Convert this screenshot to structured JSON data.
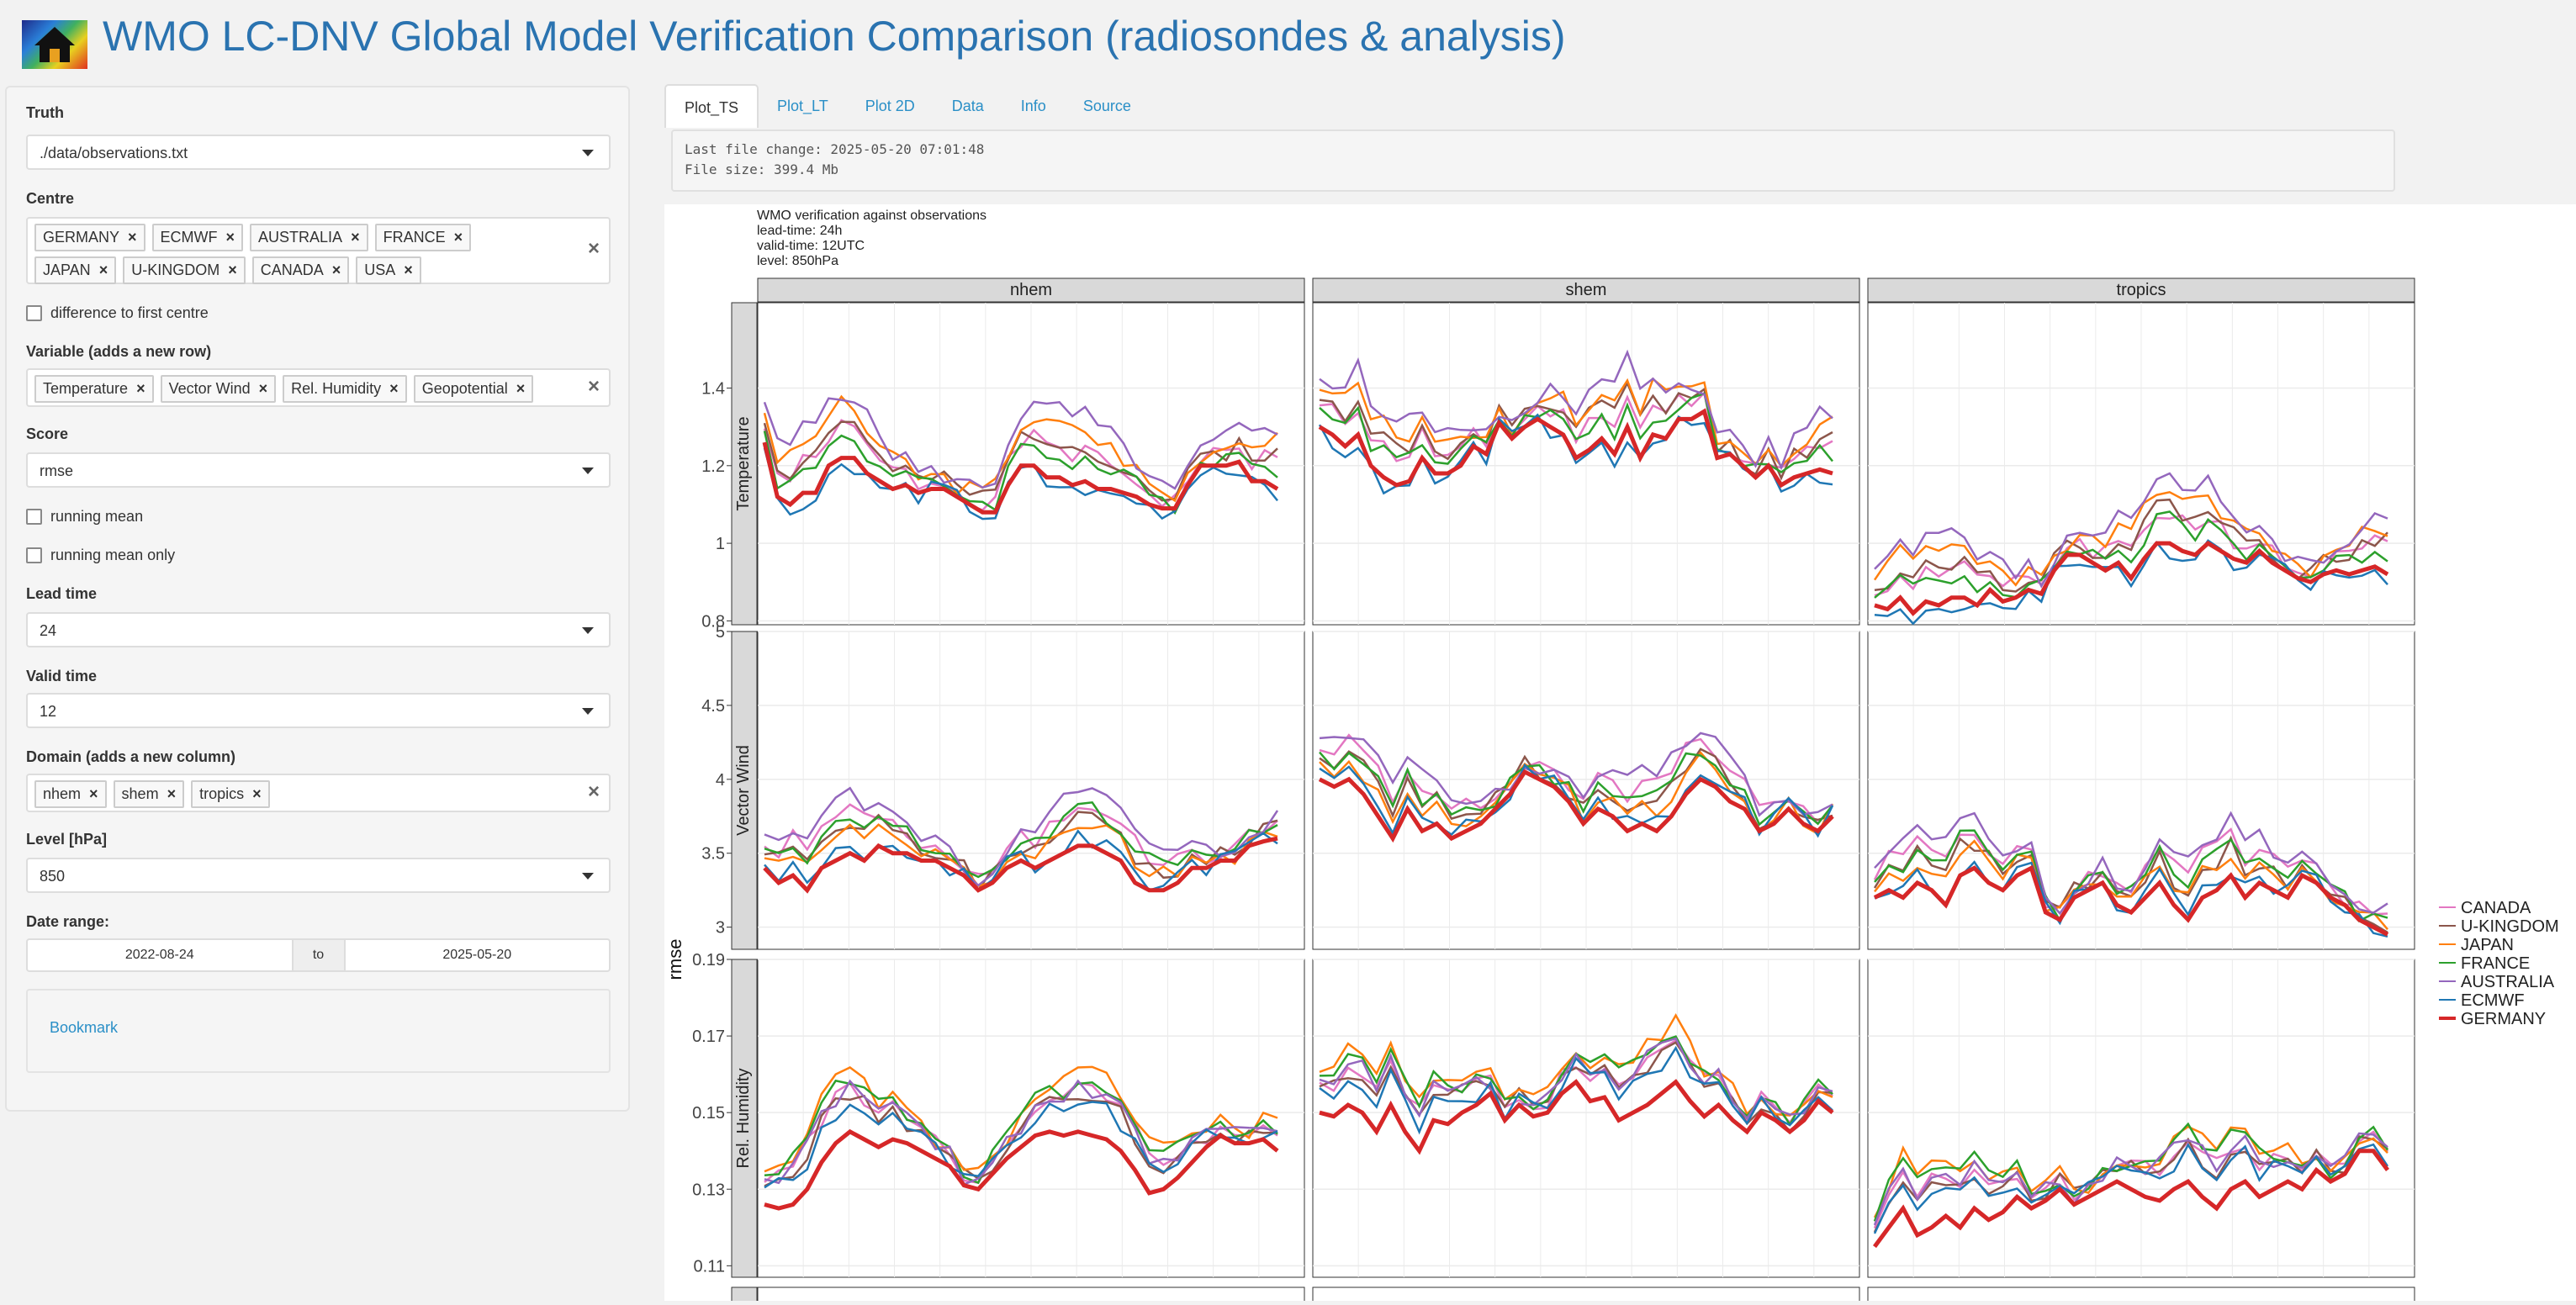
{
  "header": {
    "title": "WMO LC-DNV Global Model Verification Comparison (radiosondes & analysis)",
    "logo_icon": "house-icon"
  },
  "sidebar": {
    "truth": {
      "label": "Truth",
      "value": "./data/observations.txt"
    },
    "centre": {
      "label": "Centre",
      "tags": [
        "GERMANY",
        "ECMWF",
        "AUSTRALIA",
        "FRANCE",
        "JAPAN",
        "U-KINGDOM",
        "CANADA",
        "USA"
      ]
    },
    "diff_first": {
      "label": "difference to first centre",
      "checked": false
    },
    "variable": {
      "label": "Variable (adds a new row)",
      "tags": [
        "Temperature",
        "Vector Wind",
        "Rel. Humidity",
        "Geopotential"
      ]
    },
    "score": {
      "label": "Score",
      "value": "rmse"
    },
    "running_mean": {
      "label": "running mean",
      "checked": false
    },
    "running_mean_only": {
      "label": "running mean only",
      "checked": false
    },
    "lead_time": {
      "label": "Lead time",
      "value": "24"
    },
    "valid_time": {
      "label": "Valid time",
      "value": "12"
    },
    "domain": {
      "label": "Domain (adds a new column)",
      "tags": [
        "nhem",
        "shem",
        "tropics"
      ]
    },
    "level": {
      "label": "Level [hPa]",
      "value": "850"
    },
    "date_range": {
      "label": "Date range:",
      "start": "2022-08-24",
      "sep": "to",
      "end": "2025-05-20"
    },
    "bookmark": "Bookmark"
  },
  "tabs": [
    "Plot_TS",
    "Plot_LT",
    "Plot 2D",
    "Data",
    "Info",
    "Source"
  ],
  "active_tab": "Plot_TS",
  "file_info": {
    "last_change": "Last file change: 2025-05-20 07:01:48",
    "size": "File size: 399.4 Mb"
  },
  "chart_data": {
    "type": "line",
    "title_lines": [
      "WMO verification against observations",
      "lead-time: 24h",
      "valid-time: 12UTC",
      "level: 850hPa"
    ],
    "ylabel": "rmse",
    "columns": [
      "nhem",
      "shem",
      "tropics"
    ],
    "rows": [
      {
        "name": "Temperature",
        "ylim": [
          0.79,
          1.62
        ],
        "yticks": [
          0.8,
          1.0,
          1.2,
          1.4
        ]
      },
      {
        "name": "Vector Wind",
        "ylim": [
          2.85,
          5.0
        ],
        "yticks": [
          3.0,
          3.5,
          4.0,
          4.5,
          5.0
        ]
      },
      {
        "name": "Rel. Humidity",
        "ylim": [
          0.107,
          0.19
        ],
        "yticks": [
          0.11,
          0.13,
          0.15,
          0.17,
          0.19
        ]
      }
    ],
    "legend": [
      "CANADA",
      "U-KINGDOM",
      "JAPAN",
      "FRANCE",
      "AUSTRALIA",
      "ECMWF",
      "GERMANY"
    ],
    "colors": {
      "CANADA": "#e377c2",
      "U-KINGDOM": "#8c564b",
      "JAPAN": "#ff7f0e",
      "FRANCE": "#2ca02c",
      "AUSTRALIA": "#9467bd",
      "ECMWF": "#1f77b4",
      "GERMANY": "#d62728"
    },
    "series_base": {
      "Temperature": {
        "nhem": [
          1.26,
          1.12,
          1.1,
          1.13,
          1.13,
          1.2,
          1.22,
          1.22,
          1.18,
          1.16,
          1.14,
          1.15,
          1.13,
          1.14,
          1.14,
          1.12,
          1.1,
          1.08,
          1.08,
          1.15,
          1.2,
          1.2,
          1.17,
          1.17,
          1.15,
          1.16,
          1.14,
          1.14,
          1.13,
          1.12,
          1.1,
          1.09,
          1.09,
          1.15,
          1.2,
          1.2,
          1.2,
          1.21,
          1.16,
          1.16,
          1.14
        ],
        "shem": [
          1.3,
          1.28,
          1.25,
          1.28,
          1.2,
          1.17,
          1.15,
          1.16,
          1.22,
          1.18,
          1.18,
          1.2,
          1.25,
          1.23,
          1.31,
          1.27,
          1.3,
          1.32,
          1.3,
          1.28,
          1.22,
          1.24,
          1.27,
          1.23,
          1.3,
          1.22,
          1.28,
          1.27,
          1.32,
          1.32,
          1.34,
          1.22,
          1.23,
          1.2,
          1.17,
          1.2,
          1.15,
          1.17,
          1.18,
          1.19,
          1.18
        ],
        "tropics": [
          0.84,
          0.83,
          0.86,
          0.82,
          0.85,
          0.84,
          0.86,
          0.86,
          0.84,
          0.88,
          0.85,
          0.86,
          0.88,
          0.87,
          0.93,
          0.97,
          0.97,
          0.95,
          0.93,
          0.95,
          0.91,
          0.96,
          1.0,
          1.0,
          0.98,
          0.97,
          1.0,
          0.98,
          0.96,
          0.95,
          0.98,
          0.95,
          0.93,
          0.91,
          0.9,
          0.92,
          0.93,
          0.92,
          0.93,
          0.94,
          0.92
        ]
      },
      "Vector Wind": {
        "nhem": [
          3.4,
          3.3,
          3.35,
          3.25,
          3.4,
          3.45,
          3.5,
          3.45,
          3.55,
          3.5,
          3.5,
          3.45,
          3.45,
          3.4,
          3.35,
          3.25,
          3.3,
          3.4,
          3.45,
          3.4,
          3.45,
          3.5,
          3.55,
          3.55,
          3.5,
          3.45,
          3.3,
          3.25,
          3.25,
          3.3,
          3.4,
          3.4,
          3.45,
          3.45,
          3.55,
          3.58,
          3.6
        ],
        "shem": [
          4.0,
          3.95,
          4.0,
          3.9,
          3.75,
          3.6,
          3.8,
          3.65,
          3.7,
          3.6,
          3.65,
          3.7,
          3.8,
          3.9,
          4.05,
          4.0,
          3.95,
          3.85,
          3.7,
          3.8,
          3.75,
          3.65,
          3.7,
          3.65,
          3.75,
          3.9,
          4.0,
          3.95,
          3.85,
          3.8,
          3.65,
          3.7,
          3.8,
          3.7,
          3.65,
          3.75
        ],
        "tropics": [
          3.2,
          3.25,
          3.2,
          3.3,
          3.25,
          3.15,
          3.35,
          3.4,
          3.3,
          3.25,
          3.35,
          3.4,
          3.1,
          3.05,
          3.2,
          3.25,
          3.3,
          3.15,
          3.1,
          3.2,
          3.3,
          3.15,
          3.05,
          3.2,
          3.25,
          3.35,
          3.2,
          3.3,
          3.25,
          3.2,
          3.35,
          3.3,
          3.2,
          3.15,
          3.05,
          3.0,
          2.95
        ]
      },
      "Rel. Humidity": {
        "nhem": [
          0.126,
          0.125,
          0.126,
          0.13,
          0.137,
          0.142,
          0.145,
          0.143,
          0.141,
          0.143,
          0.142,
          0.14,
          0.138,
          0.136,
          0.131,
          0.13,
          0.134,
          0.138,
          0.141,
          0.144,
          0.145,
          0.144,
          0.145,
          0.144,
          0.143,
          0.14,
          0.135,
          0.129,
          0.13,
          0.133,
          0.137,
          0.141,
          0.144,
          0.142,
          0.142,
          0.143,
          0.14
        ],
        "shem": [
          0.15,
          0.149,
          0.152,
          0.15,
          0.145,
          0.152,
          0.145,
          0.14,
          0.148,
          0.147,
          0.15,
          0.152,
          0.155,
          0.148,
          0.152,
          0.149,
          0.15,
          0.155,
          0.158,
          0.153,
          0.154,
          0.148,
          0.15,
          0.152,
          0.155,
          0.158,
          0.153,
          0.149,
          0.152,
          0.148,
          0.145,
          0.15,
          0.148,
          0.145,
          0.148,
          0.153,
          0.15
        ],
        "tropics": [
          0.115,
          0.12,
          0.125,
          0.118,
          0.12,
          0.123,
          0.12,
          0.125,
          0.122,
          0.124,
          0.128,
          0.125,
          0.127,
          0.13,
          0.126,
          0.128,
          0.13,
          0.132,
          0.13,
          0.128,
          0.127,
          0.13,
          0.132,
          0.128,
          0.125,
          0.13,
          0.132,
          0.128,
          0.13,
          0.132,
          0.13,
          0.135,
          0.132,
          0.134,
          0.14,
          0.14,
          0.135
        ]
      }
    },
    "offsets": {
      "Temperature": {
        "ECMWF": -0.02,
        "FRANCE": 0.06,
        "U-KINGDOM": 0.1,
        "JAPAN": 0.14,
        "AUSTRALIA": 0.18,
        "CANADA": 0.08
      },
      "Vector Wind": {
        "ECMWF": 0.05,
        "FRANCE": 0.25,
        "U-KINGDOM": 0.2,
        "JAPAN": 0.15,
        "AUSTRALIA": 0.4,
        "CANADA": 0.3
      },
      "Rel. Humidity": {
        "ECMWF": 0.008,
        "FRANCE": 0.014,
        "U-KINGDOM": 0.01,
        "JAPAN": 0.016,
        "AUSTRALIA": 0.012,
        "CANADA": 0.012
      }
    }
  }
}
